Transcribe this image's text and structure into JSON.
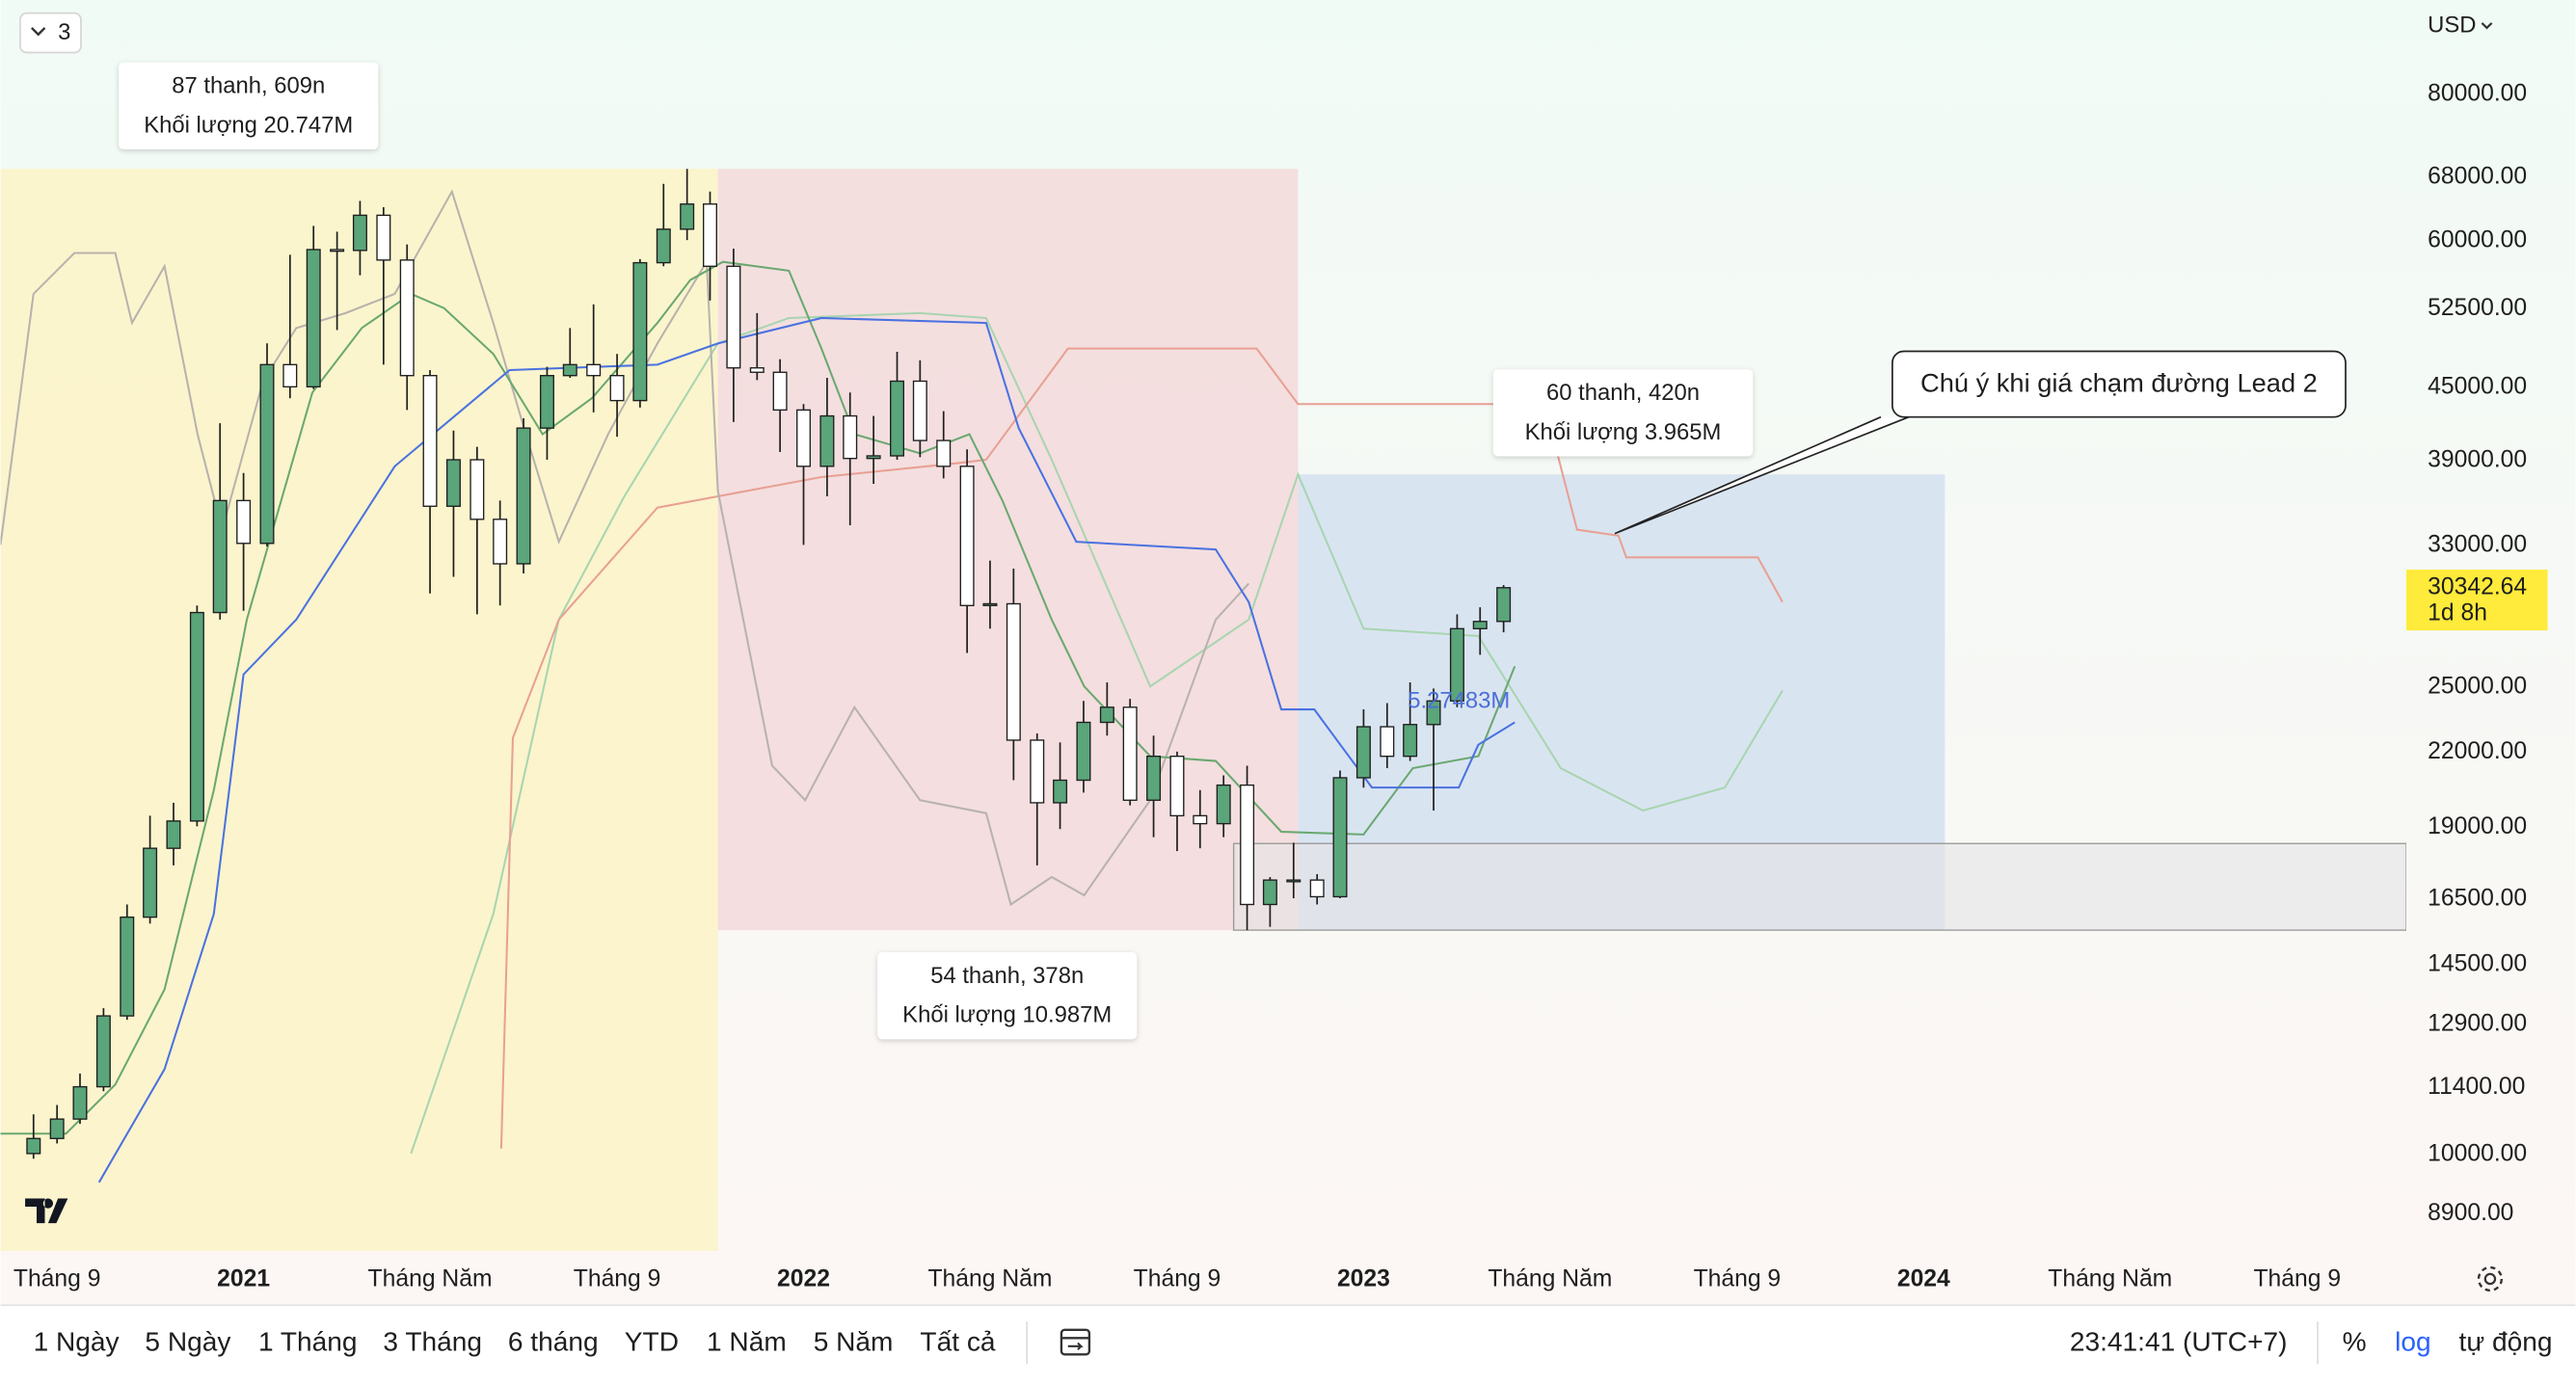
{
  "header": {
    "interval_count": "3",
    "currency": "USD"
  },
  "chart_data": {
    "type": "candlestick",
    "log": true,
    "grid": false,
    "up_color": "#5aa57a",
    "down_color": "#ffffff",
    "border_color": "#1f1f1f",
    "x": [
      2020.625,
      2020.667,
      2020.708,
      2020.75,
      2020.792,
      2020.833,
      2020.875,
      2020.917,
      2020.958,
      2021.0,
      2021.042,
      2021.083,
      2021.125,
      2021.167,
      2021.208,
      2021.25,
      2021.292,
      2021.333,
      2021.375,
      2021.417,
      2021.458,
      2021.5,
      2021.542,
      2021.583,
      2021.625,
      2021.667,
      2021.708,
      2021.75,
      2021.792,
      2021.833,
      2021.875,
      2021.917,
      2021.958,
      2022.0,
      2022.042,
      2022.083,
      2022.125,
      2022.167,
      2022.208,
      2022.25,
      2022.292,
      2022.333,
      2022.375,
      2022.417,
      2022.458,
      2022.5,
      2022.542,
      2022.583,
      2022.625,
      2022.667,
      2022.708,
      2022.75,
      2022.792,
      2022.833,
      2022.875,
      2022.917,
      2022.958,
      2023.0,
      2023.042,
      2023.083,
      2023.125,
      2023.167,
      2023.208,
      2023.25
    ],
    "open": [
      10000,
      10300,
      10700,
      11400,
      13100,
      15900,
      18200,
      19200,
      28900,
      36000,
      33100,
      47000,
      45000,
      58900,
      58800,
      63000,
      57700,
      46000,
      35600,
      39000,
      34700,
      31800,
      41500,
      46000,
      47000,
      46000,
      43800,
      57400,
      61300,
      64400,
      57000,
      46700,
      46300,
      43000,
      38500,
      42500,
      39100,
      39300,
      45500,
      40500,
      38500,
      29300,
      29400,
      22500,
      19900,
      20800,
      23300,
      24000,
      20000,
      21800,
      19400,
      19100,
      20600,
      16300,
      17100,
      17100,
      16550,
      20900,
      23100,
      21800,
      23200,
      24300,
      28000,
      28400
    ],
    "high": [
      10800,
      11000,
      11700,
      13300,
      16300,
      19400,
      19900,
      29300,
      41900,
      38000,
      49000,
      58300,
      61700,
      61000,
      64800,
      64000,
      59500,
      46500,
      41300,
      40000,
      36000,
      42300,
      46800,
      50500,
      52900,
      48000,
      57800,
      67000,
      69000,
      66000,
      59000,
      52000,
      47500,
      43500,
      45800,
      44500,
      42500,
      48200,
      47400,
      42900,
      39800,
      32000,
      31500,
      22800,
      22400,
      24300,
      25200,
      24400,
      22700,
      22000,
      20400,
      21000,
      21400,
      17200,
      18400,
      17300,
      21200,
      23900,
      24200,
      25200,
      24900,
      28800,
      29200,
      30500
    ],
    "low": [
      9900,
      10200,
      10600,
      11300,
      13000,
      15700,
      17600,
      19000,
      28500,
      29000,
      32900,
      44000,
      44800,
      50300,
      56000,
      47000,
      43000,
      30000,
      31000,
      28800,
      29300,
      31200,
      39000,
      45800,
      42800,
      40800,
      43200,
      57000,
      60000,
      53300,
      42000,
      45600,
      39600,
      33000,
      36300,
      34300,
      37200,
      39000,
      39200,
      37600,
      26700,
      28000,
      20800,
      17600,
      18900,
      20300,
      22700,
      19800,
      18600,
      18100,
      18200,
      18600,
      15500,
      15600,
      16500,
      16300,
      16500,
      20500,
      21300,
      21600,
      19600,
      24000,
      26600,
      27800
    ],
    "close": [
      10300,
      10700,
      11400,
      13100,
      15900,
      18200,
      19200,
      28900,
      36000,
      33100,
      47000,
      45000,
      58900,
      58800,
      63000,
      57700,
      46000,
      35600,
      39000,
      34700,
      31800,
      41500,
      46000,
      47000,
      46000,
      43800,
      57400,
      61300,
      64400,
      57000,
      46700,
      46300,
      43000,
      38500,
      42500,
      39100,
      39300,
      45500,
      40500,
      38500,
      29300,
      29400,
      22500,
      19900,
      20800,
      23300,
      24000,
      20000,
      21800,
      19400,
      19100,
      20600,
      16300,
      17100,
      17100,
      16550,
      20900,
      23100,
      21800,
      23200,
      24300,
      28000,
      28400,
      30342.64
    ],
    "countdown": "1d 8h",
    "xlim": [
      2020.566,
      2024.862
    ],
    "ylim": [
      8260,
      96100
    ],
    "xticks": [
      {
        "value": 2020.667,
        "label": "Tháng 9"
      },
      2021,
      {
        "value": 2021.333,
        "label": "Tháng Năm"
      },
      {
        "value": 2021.667,
        "label": "Tháng 9"
      },
      2022,
      {
        "value": 2022.333,
        "label": "Tháng Năm"
      },
      {
        "value": 2022.667,
        "label": "Tháng 9"
      },
      2023,
      {
        "value": 2023.333,
        "label": "Tháng Năm"
      },
      {
        "value": 2023.667,
        "label": "Tháng 9"
      },
      2024,
      {
        "value": 2024.333,
        "label": "Tháng Năm"
      },
      {
        "value": 2024.667,
        "label": "Tháng 9"
      }
    ],
    "yticks": [
      {
        "value": 80000,
        "label": "80000.00"
      },
      {
        "value": 68000,
        "label": "68000.00"
      },
      {
        "value": 60000,
        "label": "60000.00"
      },
      {
        "value": 52500,
        "label": "52500.00"
      },
      {
        "value": 45000,
        "label": "45000.00"
      },
      {
        "value": 39000,
        "label": "39000.00"
      },
      {
        "value": 33000,
        "label": "33000.00"
      },
      {
        "value": 25000,
        "label": "25000.00"
      },
      {
        "value": 22000,
        "label": "22000.00"
      },
      {
        "value": 19000,
        "label": "19000.00"
      },
      {
        "value": 16500,
        "label": "16500.00"
      },
      {
        "value": 14500,
        "label": "14500.00"
      },
      {
        "value": 12900,
        "label": "12900.00"
      },
      {
        "value": 11400,
        "label": "11400.00"
      },
      {
        "value": 10000,
        "label": "10000.00"
      },
      {
        "value": 8900,
        "label": "8900.00"
      }
    ],
    "lines": [
      {
        "color": "#a8d5b0",
        "x": [
          2021.299,
          2021.446,
          2021.563,
          2021.68,
          2021.847,
          2021.974,
          2022.208,
          2022.326,
          2022.443,
          2022.619,
          2022.795,
          2022.883,
          2023.0,
          2023.205,
          2023.352,
          2023.499,
          2023.645,
          2023.748
        ],
        "values": [
          10000,
          16000,
          28500,
          36300,
          49000,
          51500,
          52000,
          51500,
          39000,
          25000,
          28500,
          37900,
          28000,
          27600,
          21300,
          19600,
          20500,
          24800
        ]
      },
      {
        "color": "#e8a093",
        "x": [
          2021.46,
          2021.481,
          2021.563,
          2021.739,
          2021.847,
          2022.032,
          2022.267,
          2022.326,
          2022.472,
          2022.619,
          2022.809,
          2022.883,
          2023.323,
          2023.381,
          2023.455,
          2023.469,
          2023.704,
          2023.748
        ],
        "values": [
          10100,
          22600,
          28500,
          35500,
          36300,
          37700,
          38700,
          39000,
          48500,
          48500,
          48500,
          43500,
          43500,
          34000,
          33600,
          32200,
          32200,
          29500
        ]
      },
      {
        "color": "#b8b2ad",
        "x": [
          2020.566,
          2020.625,
          2020.698,
          2020.771,
          2020.801,
          2020.859,
          2020.918,
          2020.962,
          2021.035,
          2021.094,
          2021.182,
          2021.27,
          2021.372,
          2021.446,
          2021.504,
          2021.563,
          2021.651,
          2021.739,
          2021.827,
          2021.847,
          2021.944,
          2022.003,
          2022.091,
          2022.208,
          2022.326,
          2022.37,
          2022.443,
          2022.501,
          2022.619,
          2022.736,
          2022.795
        ],
        "values": [
          33000,
          54000,
          58500,
          58500,
          51000,
          57000,
          41000,
          34000,
          45500,
          50500,
          52000,
          54000,
          66000,
          51000,
          41000,
          33200,
          41000,
          49000,
          57500,
          36700,
          21400,
          20000,
          24000,
          20000,
          19500,
          16300,
          17200,
          16600,
          20000,
          28500,
          30600
        ]
      },
      {
        "color": "#6aa870",
        "x": [
          2020.566,
          2020.683,
          2020.771,
          2020.859,
          2020.947,
          2021.006,
          2021.123,
          2021.211,
          2021.299,
          2021.358,
          2021.446,
          2021.534,
          2021.622,
          2021.739,
          2021.798,
          2021.856,
          2021.974,
          2022.032,
          2022.091,
          2022.208,
          2022.296,
          2022.355,
          2022.443,
          2022.501,
          2022.619,
          2022.736,
          2022.853,
          2023.0,
          2023.088,
          2023.205,
          2023.27
        ],
        "values": [
          10400,
          10400,
          11450,
          13800,
          20400,
          28500,
          44500,
          50500,
          54000,
          52500,
          48000,
          41000,
          44000,
          51000,
          55500,
          57500,
          56500,
          48500,
          41000,
          39500,
          41000,
          36000,
          28500,
          25000,
          21800,
          21600,
          18800,
          18700,
          21300,
          21800,
          26000
        ]
      },
      {
        "color": "#4a72e0",
        "x": [
          2020.742,
          2020.859,
          2020.947,
          2021.0,
          2021.094,
          2021.27,
          2021.475,
          2021.739,
          2021.847,
          2022.032,
          2022.326,
          2022.384,
          2022.487,
          2022.736,
          2022.795,
          2022.853,
          2022.912,
          2023.015,
          2023.17,
          2023.205,
          2023.27
        ],
        "values": [
          9450,
          11800,
          16000,
          25600,
          28500,
          38500,
          46500,
          47000,
          49000,
          51500,
          51000,
          41500,
          33200,
          32700,
          29500,
          23900,
          23900,
          20500,
          20500,
          22300,
          23300
        ]
      }
    ],
    "ranges": [
      {
        "color": "#fbf3c6",
        "x": [
          2020.566,
          2021.847
        ],
        "y": [
          8260,
          69000
        ],
        "labels": [
          "87 thanh, 609n",
          "Khối lượng 20.747M"
        ]
      },
      {
        "color": "#f3d9da",
        "x": [
          2021.847,
          2022.883
        ],
        "y": [
          15500,
          69000
        ],
        "labels": [
          "54 thanh, 378n",
          "Khối lượng 10.987M"
        ]
      },
      {
        "color": "#d3e0f0",
        "x": [
          2022.883,
          2024.038
        ],
        "y": [
          15500,
          37900
        ],
        "labels": [
          "60 thanh, 420n",
          "Khối lượng 3.965M"
        ],
        "center_label": "5.27483M"
      },
      {
        "color": "#e4e4e6",
        "x": [
          2022.768,
          2024.862
        ],
        "y": [
          15500,
          18370
        ]
      }
    ],
    "callout": "Chú ý khi giá chạm đường Lead 2"
  },
  "toolbar": {
    "ranges": [
      "1 Ngày",
      "5 Ngày",
      "1 Tháng",
      "3 Tháng",
      "6 tháng",
      "YTD",
      "1 Năm",
      "5 Năm",
      "Tất cả"
    ],
    "time": "23:41:41 (UTC+7)",
    "percent": "%",
    "log": "log",
    "auto": "tự động"
  }
}
